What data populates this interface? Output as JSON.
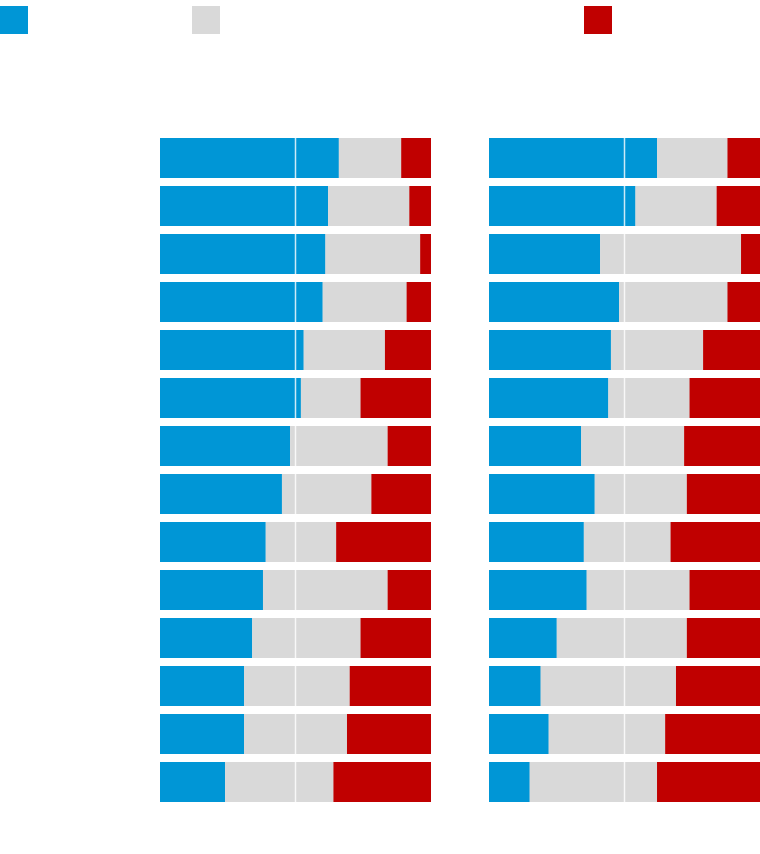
{
  "chart_data": [
    {
      "type": "bar",
      "orientation": "horizontal",
      "stacked": true,
      "categories": [
        null,
        null,
        null,
        null,
        null,
        null,
        null,
        null,
        null,
        null,
        null,
        null,
        null,
        null
      ],
      "series": [
        {
          "color": "#0096d6",
          "values": [
            66,
            62,
            61,
            60,
            53,
            52,
            48,
            45,
            39,
            38,
            34,
            31,
            31,
            24
          ]
        },
        {
          "color": "#d9d9d9",
          "values": [
            23,
            30,
            35,
            31,
            30,
            22,
            36,
            33,
            26,
            46,
            40,
            39,
            38,
            40
          ]
        },
        {
          "color": "#c00000",
          "values": [
            11,
            8,
            4,
            9,
            17,
            26,
            16,
            22,
            35,
            16,
            26,
            30,
            31,
            36
          ]
        }
      ],
      "xlim": [
        0,
        100
      ],
      "xticks": [
        50
      ],
      "grid": true,
      "legend": true
    },
    {
      "type": "bar",
      "orientation": "horizontal",
      "stacked": true,
      "categories": [
        null,
        null,
        null,
        null,
        null,
        null,
        null,
        null,
        null,
        null,
        null,
        null,
        null,
        null
      ],
      "series": [
        {
          "color": "#0096d6",
          "values": [
            62,
            54,
            41,
            48,
            45,
            44,
            34,
            39,
            35,
            36,
            25,
            19,
            22,
            15
          ]
        },
        {
          "color": "#d9d9d9",
          "values": [
            26,
            30,
            52,
            40,
            34,
            30,
            38,
            34,
            32,
            38,
            48,
            50,
            43,
            47
          ]
        },
        {
          "color": "#c00000",
          "values": [
            12,
            16,
            7,
            12,
            21,
            26,
            28,
            27,
            33,
            26,
            27,
            31,
            35,
            38
          ]
        }
      ],
      "xlim": [
        0,
        100
      ],
      "xticks": [
        50
      ],
      "grid": true,
      "legend": false
    }
  ]
}
